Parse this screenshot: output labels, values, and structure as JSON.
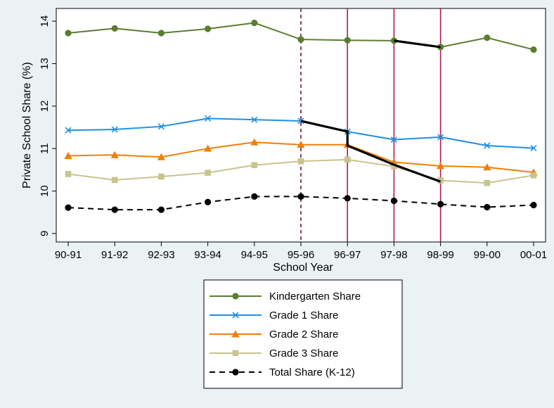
{
  "chart_data": {
    "type": "line",
    "xlabel": "School Year",
    "ylabel": "Private School Share (%)",
    "categories": [
      "90-91",
      "91-92",
      "92-93",
      "93-94",
      "94-95",
      "95-96",
      "96-97",
      "97-98",
      "98-99",
      "99-00",
      "00-01"
    ],
    "ylim": [
      8.8,
      14.3
    ],
    "yticks": [
      9,
      10,
      11,
      12,
      13,
      14
    ],
    "grid": false,
    "legend_position": "bottom",
    "series": [
      {
        "name": "Kindergarten Share",
        "color": "#5a7d2e",
        "marker": "circle",
        "values": [
          13.72,
          13.83,
          13.72,
          13.82,
          13.96,
          13.57,
          13.55,
          13.54,
          13.39,
          13.61,
          13.33
        ]
      },
      {
        "name": "Grade 1 Share",
        "color": "#1f8fe6",
        "marker": "x",
        "values": [
          11.43,
          11.45,
          11.52,
          11.71,
          11.68,
          11.65,
          11.4,
          11.21,
          11.27,
          11.07,
          11.01
        ]
      },
      {
        "name": "Grade 2 Share",
        "color": "#f07f0a",
        "marker": "triangle",
        "values": [
          10.83,
          10.85,
          10.8,
          11.0,
          11.15,
          11.09,
          11.09,
          10.68,
          10.59,
          10.56,
          10.44
        ]
      },
      {
        "name": "Grade 3 Share",
        "color": "#c9c38e",
        "marker": "square",
        "values": [
          10.4,
          10.26,
          10.34,
          10.43,
          10.61,
          10.7,
          10.74,
          10.58,
          10.25,
          10.19,
          10.37
        ]
      },
      {
        "name": "Total Share (K-12)",
        "color": "#000000",
        "marker": "circle",
        "dashed": true,
        "values": [
          9.61,
          9.56,
          9.56,
          9.74,
          9.87,
          9.87,
          9.83,
          9.77,
          9.69,
          9.62,
          9.67
        ]
      }
    ],
    "vertical_lines": [
      {
        "x": "95-96",
        "color": "#6b1a33",
        "dashed": true
      },
      {
        "x": "96-97",
        "color": "#b3194d",
        "dashed": false
      },
      {
        "x": "97-98",
        "color": "#b3194d",
        "dashed": false
      },
      {
        "x": "98-99",
        "color": "#b3194d",
        "dashed": false
      }
    ],
    "highlight_lines": [
      {
        "color": "#000000",
        "points": [
          [
            "97-98",
            13.54
          ],
          [
            "98-99",
            13.39
          ]
        ]
      },
      {
        "color": "#000000",
        "points": [
          [
            "95-96",
            11.65
          ],
          [
            "96-97",
            11.4
          ],
          [
            "96-97",
            11.07
          ],
          [
            "97-98",
            10.62
          ],
          [
            "98-99",
            10.22
          ]
        ]
      }
    ]
  }
}
